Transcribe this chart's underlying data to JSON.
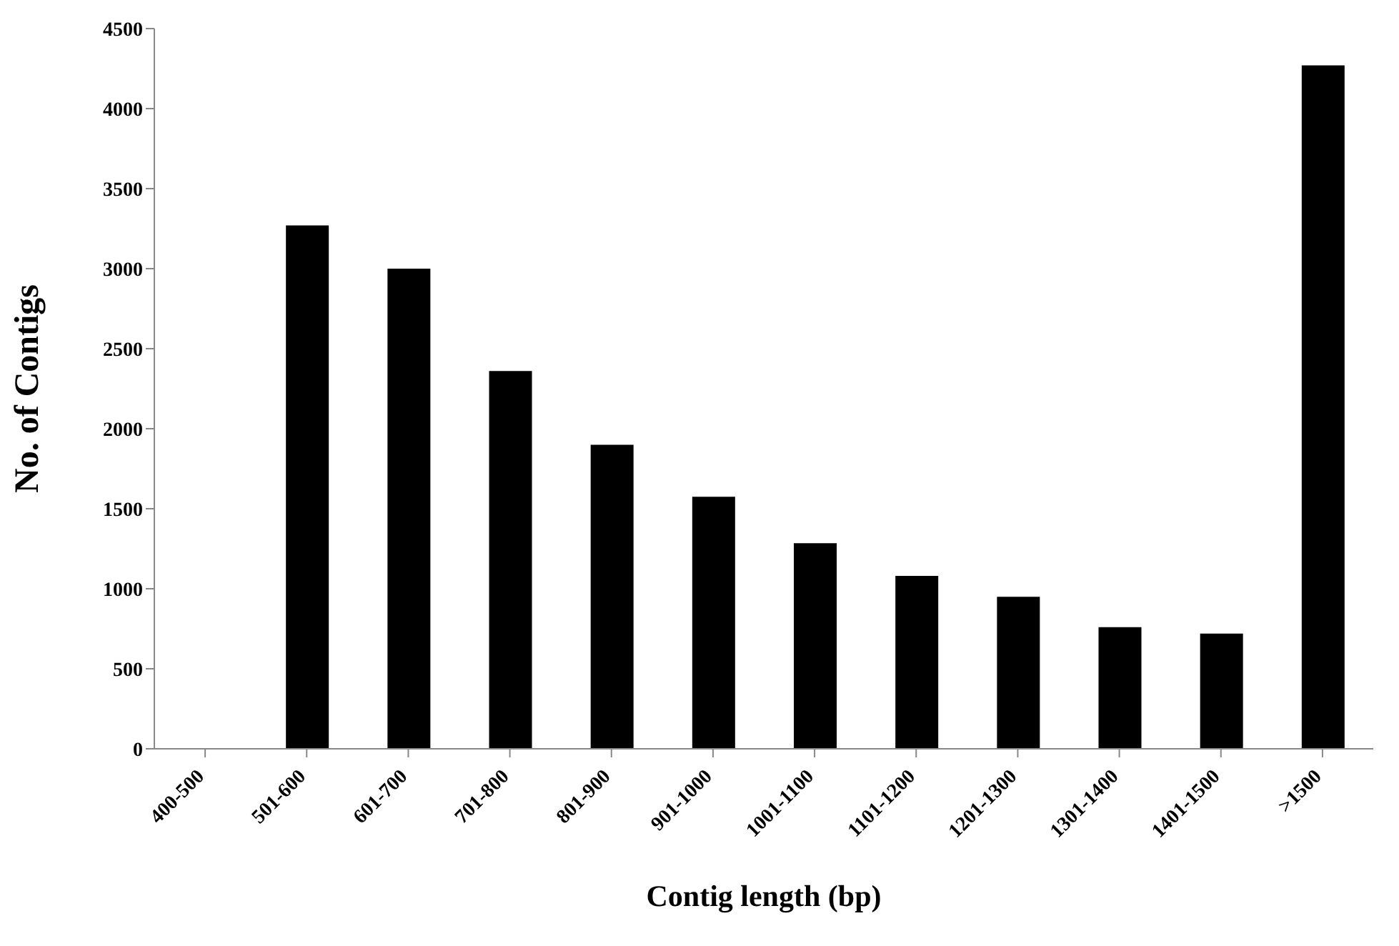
{
  "chart_data": {
    "type": "bar",
    "xlabel": "Contig length (bp)",
    "ylabel": "No. of Contigs",
    "categories": [
      "400-500",
      "501-600",
      "601-700",
      "701-800",
      "801-900",
      "901-1000",
      "1001-1100",
      "1101-1200",
      "1201-1300",
      "1301-1400",
      "1401-1500",
      ">1500"
    ],
    "values": [
      0,
      3270,
      3000,
      2360,
      1900,
      1575,
      1285,
      1080,
      950,
      760,
      720,
      4270
    ],
    "color": "#000000",
    "ylim": [
      0,
      4500
    ],
    "yticks": [
      0,
      500,
      1000,
      1500,
      2000,
      2500,
      3000,
      3500,
      4000,
      4500
    ],
    "grid": false,
    "legend": false
  }
}
